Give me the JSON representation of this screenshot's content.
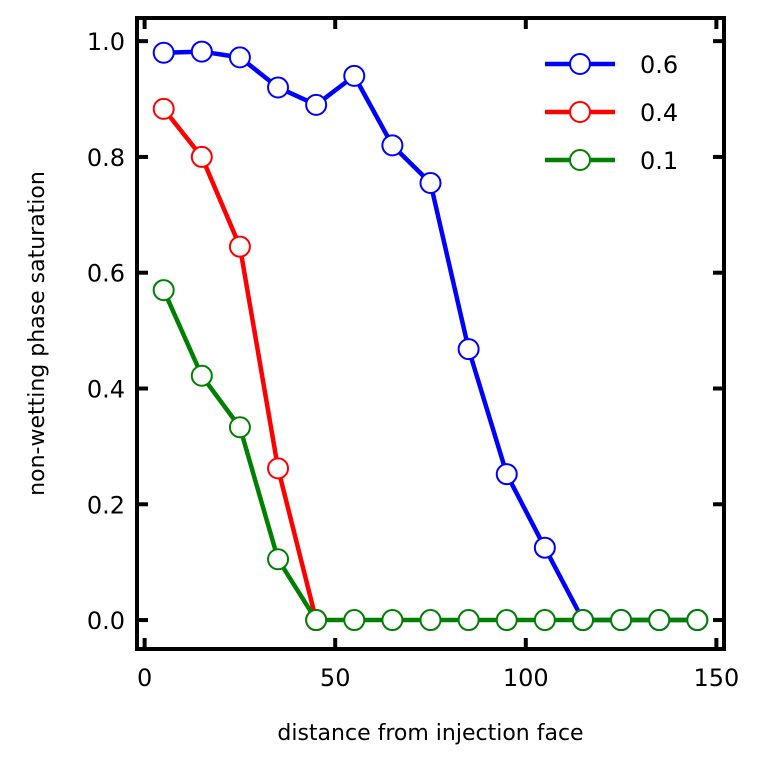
{
  "chart_data": {
    "type": "line",
    "xlabel": "distance from injection face",
    "ylabel": "non-wetting phase saturation",
    "xlim": [
      -2,
      152
    ],
    "ylim": [
      -0.05,
      1.04
    ],
    "x_ticks": [
      0,
      50,
      100,
      150
    ],
    "y_ticks": [
      0.0,
      0.2,
      0.4,
      0.6,
      0.8,
      1.0
    ],
    "x_tick_labels": [
      "0",
      "50",
      "100",
      "150"
    ],
    "y_tick_labels": [
      "0.0",
      "0.2",
      "0.4",
      "0.6",
      "0.8",
      "1.0"
    ],
    "grid": false,
    "legend_position": "top-right",
    "series": [
      {
        "name": "0.6",
        "color": "#0000ff",
        "x": [
          5,
          15,
          25,
          35,
          45,
          55,
          65,
          75,
          85,
          95,
          105,
          115,
          125,
          135,
          145
        ],
        "y": [
          0.98,
          0.982,
          0.972,
          0.92,
          0.89,
          0.94,
          0.82,
          0.755,
          0.468,
          0.252,
          0.125,
          0.0,
          0.0,
          0.0,
          0.0
        ]
      },
      {
        "name": "0.4",
        "color": "#ff0000",
        "x": [
          5,
          15,
          25,
          35,
          45
        ],
        "y": [
          0.883,
          0.8,
          0.645,
          0.262,
          0.0
        ]
      },
      {
        "name": "0.1",
        "color": "#008000",
        "x": [
          5,
          15,
          25,
          35,
          45,
          55,
          65,
          75,
          85,
          95,
          105,
          115,
          125,
          135,
          145
        ],
        "y": [
          0.57,
          0.422,
          0.333,
          0.105,
          0.0,
          0.0,
          0.0,
          0.0,
          0.0,
          0.0,
          0.0,
          0.0,
          0.0,
          0.0,
          0.0
        ]
      }
    ]
  }
}
